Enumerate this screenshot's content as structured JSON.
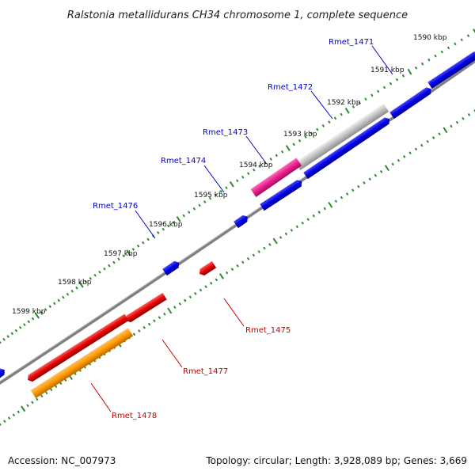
{
  "title": "Ralstonia metallidurans CH34 chromosome 1, complete sequence",
  "footer": {
    "accession": "Accession: NC_007973",
    "topology": "Topology: circular; Length: 3,928,089 bp; Genes: 3,669"
  },
  "colors": {
    "forward_gene": "#0000e6",
    "reverse_gene": "#e60000",
    "gray_feature": "#bfbfbf",
    "pink_feature": "#e8208c",
    "orange_feature": "#ff9900",
    "tick_marks": "#2e8b2e",
    "backbone": "#808080"
  },
  "scale_labels": [
    "1590 kbp",
    "1591 kbp",
    "1592 kbp",
    "1593 kbp",
    "1594 kbp",
    "1595 kbp",
    "1596 kbp",
    "1597 kbp",
    "1598 kbp",
    "1599 kbp"
  ],
  "gene_labels": [
    {
      "name": "Rmet_1471",
      "strand": "forward"
    },
    {
      "name": "Rmet_1472",
      "strand": "forward"
    },
    {
      "name": "Rmet_1473",
      "strand": "forward"
    },
    {
      "name": "Rmet_1474",
      "strand": "forward"
    },
    {
      "name": "Rmet_1476",
      "strand": "forward"
    },
    {
      "name": "Rmet_1475",
      "strand": "reverse"
    },
    {
      "name": "Rmet_1477",
      "strand": "reverse"
    },
    {
      "name": "Rmet_1478",
      "strand": "reverse"
    }
  ]
}
